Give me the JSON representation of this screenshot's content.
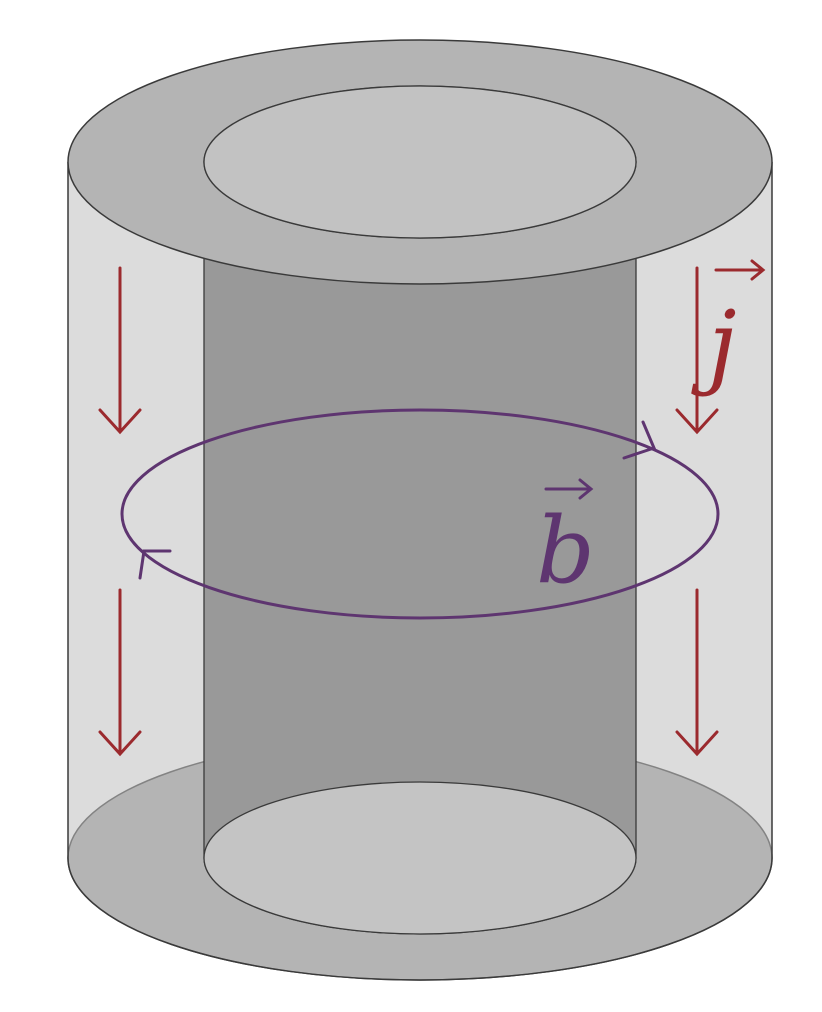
{
  "diagram": {
    "labels": {
      "current_density": "j",
      "magnetic_field": "b"
    },
    "colors": {
      "background": "#ffffff",
      "outer_wall": "#c0c0c0",
      "inner_core": "#999999",
      "top_annulus": "#b4b4b4",
      "top_disc": "#c2c2c2",
      "bottom_annulus": "#a6a6a6",
      "bottom_disc": "#c4c4c4",
      "outline": "#3a3a3a",
      "current_arrows": "#9b2a2e",
      "field_loop": "#5e3570"
    }
  }
}
